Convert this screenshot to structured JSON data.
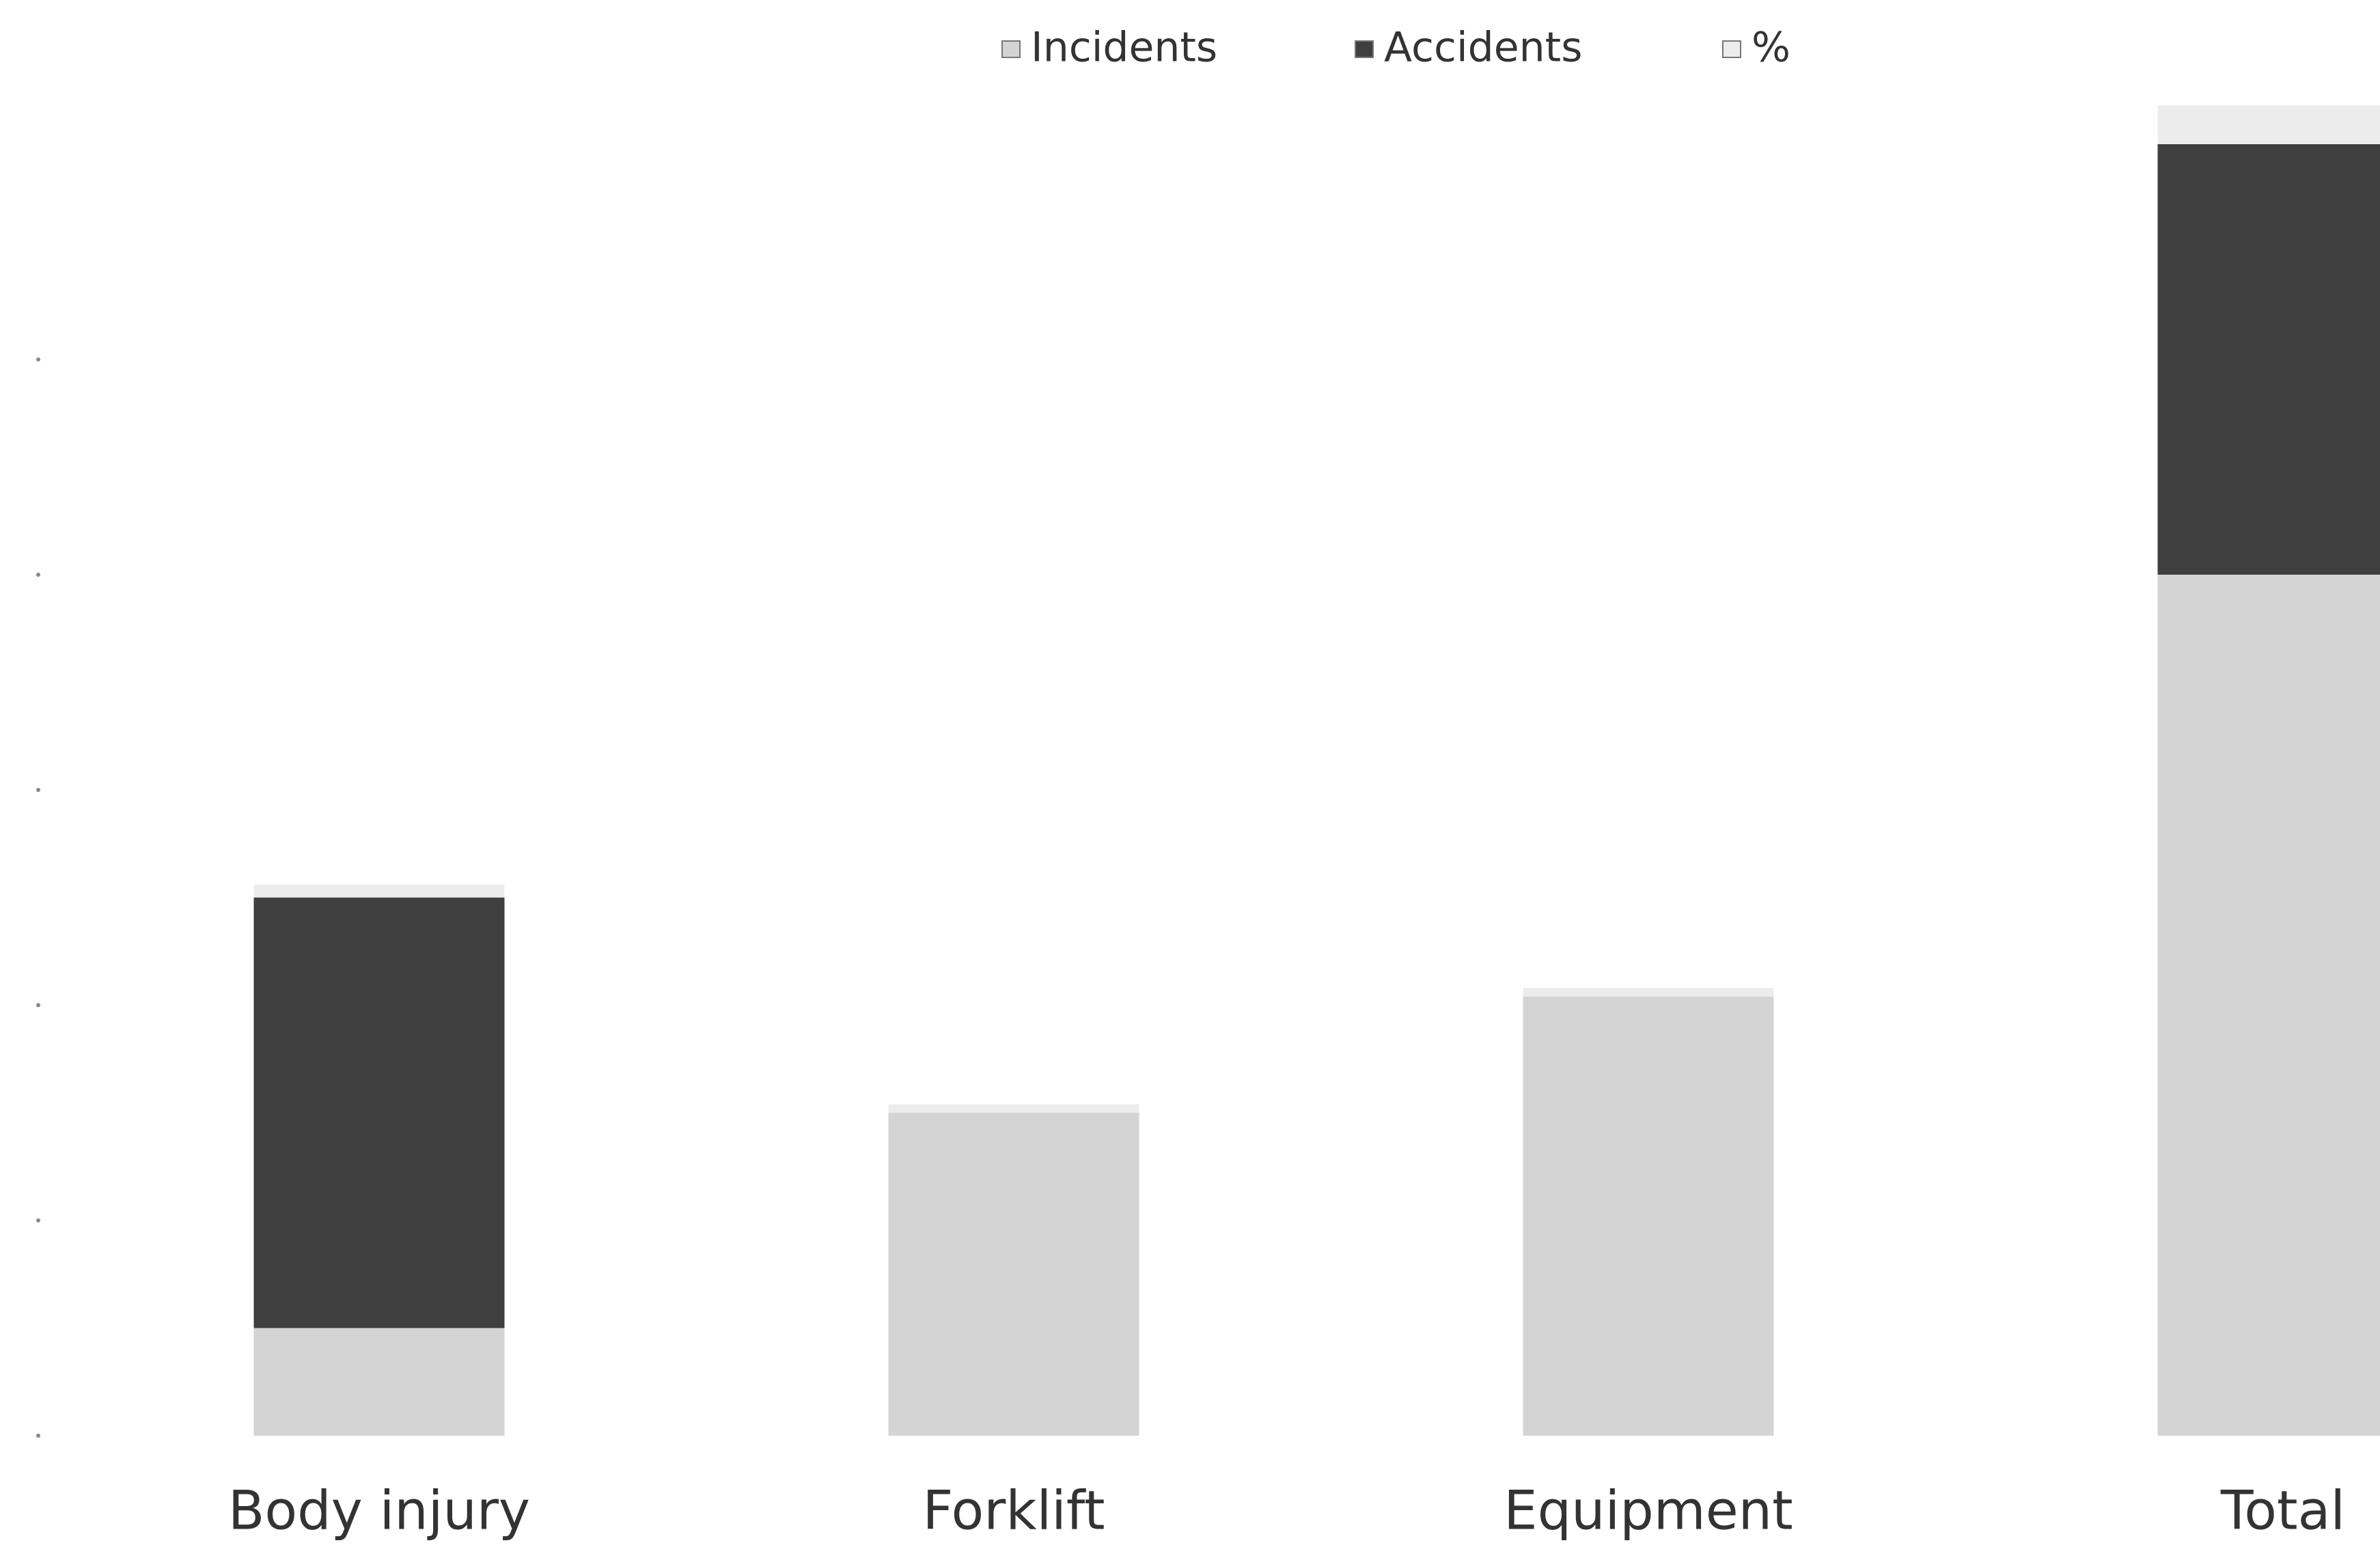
{
  "chart_data": {
    "type": "bar",
    "stacked": true,
    "categories": [
      "Body injury",
      "Forklift",
      "Equipment",
      "Total"
    ],
    "series": [
      {
        "name": "Incidents",
        "color": "#d4d4d4",
        "values": [
          2.5,
          7.5,
          10.2,
          20
        ]
      },
      {
        "name": "Accidents",
        "color": "#3f3f3f",
        "values": [
          10,
          0,
          0,
          10
        ]
      },
      {
        "name": "%",
        "color": "#ececec",
        "values": [
          0.3,
          0.2,
          0.2,
          0.9
        ]
      }
    ],
    "ylim": [
      0,
      32
    ],
    "yticks": [
      0,
      5,
      10,
      15,
      20,
      25
    ],
    "grid": false,
    "legend": "top"
  }
}
